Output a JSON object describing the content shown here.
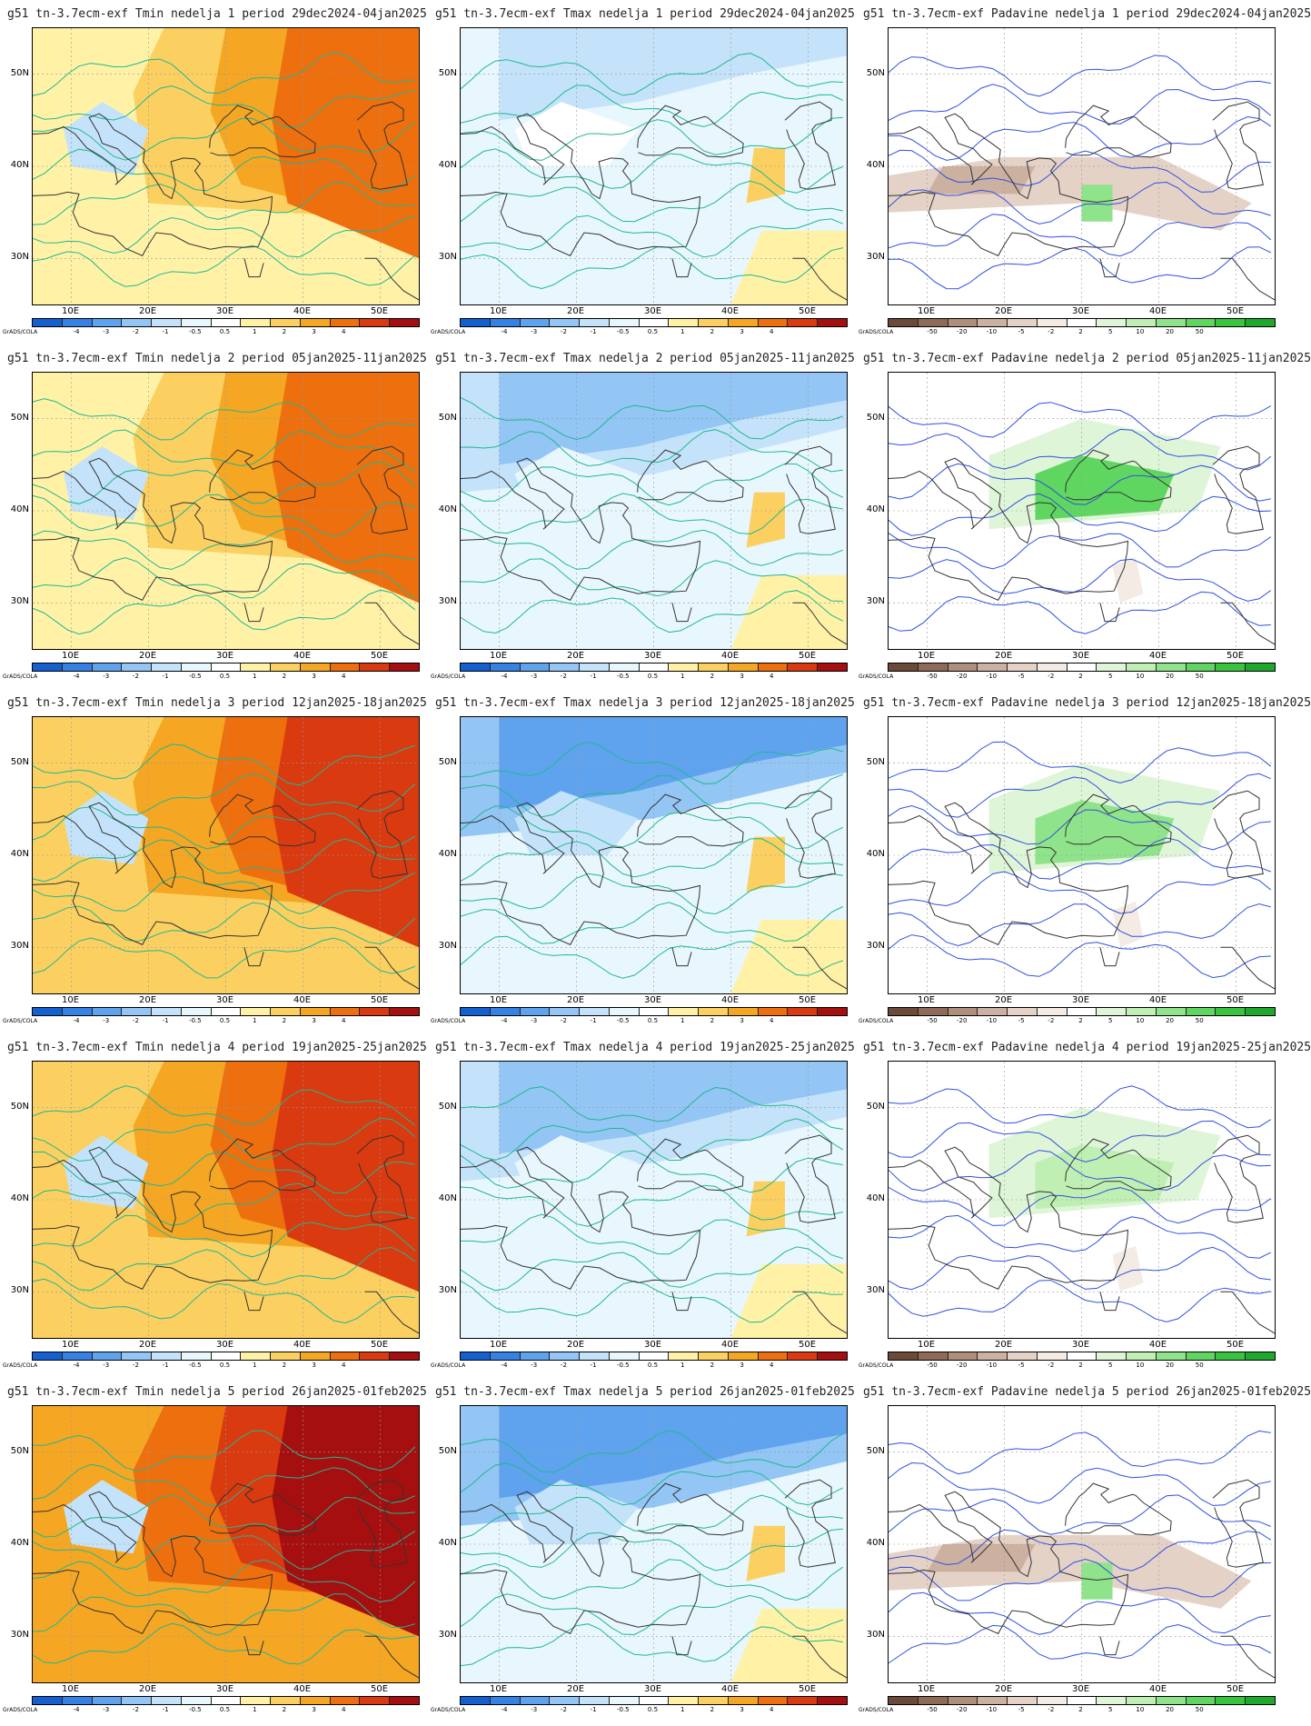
{
  "credit": "GrADS/COLA",
  "y_ticks": [
    {
      "lat": 50,
      "label": "50N"
    },
    {
      "lat": 40,
      "label": "40N"
    },
    {
      "lat": 30,
      "label": "30N"
    }
  ],
  "x_ticks": [
    {
      "lon": 10,
      "label": "10E"
    },
    {
      "lon": 20,
      "label": "20E"
    },
    {
      "lon": 30,
      "label": "30E"
    },
    {
      "lon": 40,
      "label": "40E"
    },
    {
      "lon": 50,
      "label": "50E"
    }
  ],
  "map_extent": {
    "lon": [
      5,
      55
    ],
    "lat": [
      25,
      55
    ]
  },
  "colorbars": {
    "temp": {
      "labels": [
        "-4",
        "-3",
        "-2",
        "-1",
        "-0.5",
        "0.5",
        "1",
        "2",
        "3",
        "4"
      ],
      "colors": [
        "#1560d0",
        "#3582e4",
        "#5fa3ef",
        "#93c5f5",
        "#c4e3fa",
        "#e8f7fd",
        "#ffffff",
        "#fff2a6",
        "#fbd060",
        "#f5a623",
        "#ee6f0e",
        "#d93a10",
        "#a50f0f"
      ]
    },
    "precip": {
      "labels": [
        "-50",
        "-20",
        "-10",
        "-5",
        "-2",
        "2",
        "5",
        "10",
        "20",
        "50"
      ],
      "colors": [
        "#6b4a3a",
        "#8f6a58",
        "#b08e7c",
        "#ccb0a0",
        "#e5d2c7",
        "#f4ebe5",
        "#ffffff",
        "#dff5d8",
        "#bfefb3",
        "#8fe38a",
        "#5fd65f",
        "#38c43f",
        "#1ea82c"
      ]
    }
  },
  "panels": [
    {
      "title": "g51 tn-3.7ecm-exf Tmin nedelja 1 period 29dec2024-04jan2025",
      "kind": "tmin",
      "anomaly": 2.0
    },
    {
      "title": "g51 tn-3.7ecm-exf Tmax nedelja 1 period 29dec2024-04jan2025",
      "kind": "tmax",
      "anomaly": -0.6
    },
    {
      "title": "g51 tn-3.7ecm-exf Padavine nedelja 1 period 29dec2024-04jan2025",
      "kind": "precip",
      "anomaly": -3
    },
    {
      "title": "g51 tn-3.7ecm-exf Tmin nedelja 2 period 05jan2025-11jan2025",
      "kind": "tmin",
      "anomaly": 2.2
    },
    {
      "title": "g51 tn-3.7ecm-exf Tmax nedelja 2 period 05jan2025-11jan2025",
      "kind": "tmax",
      "anomaly": -1.2
    },
    {
      "title": "g51 tn-3.7ecm-exf Padavine nedelja 2 period 05jan2025-11jan2025",
      "kind": "precip",
      "anomaly": 4
    },
    {
      "title": "g51 tn-3.7ecm-exf Tmin nedelja 3 period 12jan2025-18jan2025",
      "kind": "tmin",
      "anomaly": 2.4
    },
    {
      "title": "g51 tn-3.7ecm-exf Tmax nedelja 3 period 12jan2025-18jan2025",
      "kind": "tmax",
      "anomaly": -1.6
    },
    {
      "title": "g51 tn-3.7ecm-exf Padavine nedelja 3 period 12jan2025-18jan2025",
      "kind": "precip",
      "anomaly": 2
    },
    {
      "title": "g51 tn-3.7ecm-exf Tmin nedelja 4 period 19jan2025-25jan2025",
      "kind": "tmin",
      "anomaly": 2.8
    },
    {
      "title": "g51 tn-3.7ecm-exf Tmax nedelja 4 period 19jan2025-25jan2025",
      "kind": "tmax",
      "anomaly": -1.4
    },
    {
      "title": "g51 tn-3.7ecm-exf Padavine nedelja 4 period 19jan2025-25jan2025",
      "kind": "precip",
      "anomaly": 0
    },
    {
      "title": "g51 tn-3.7ecm-exf Tmin nedelja 5 period 26jan2025-01feb2025",
      "kind": "tmin",
      "anomaly": 3.0
    },
    {
      "title": "g51 tn-3.7ecm-exf Tmax nedelja 5 period 26jan2025-01feb2025",
      "kind": "tmax",
      "anomaly": -1.8
    },
    {
      "title": "g51 tn-3.7ecm-exf Padavine nedelja 5 period 26jan2025-01feb2025",
      "kind": "precip",
      "anomaly": -1
    }
  ]
}
